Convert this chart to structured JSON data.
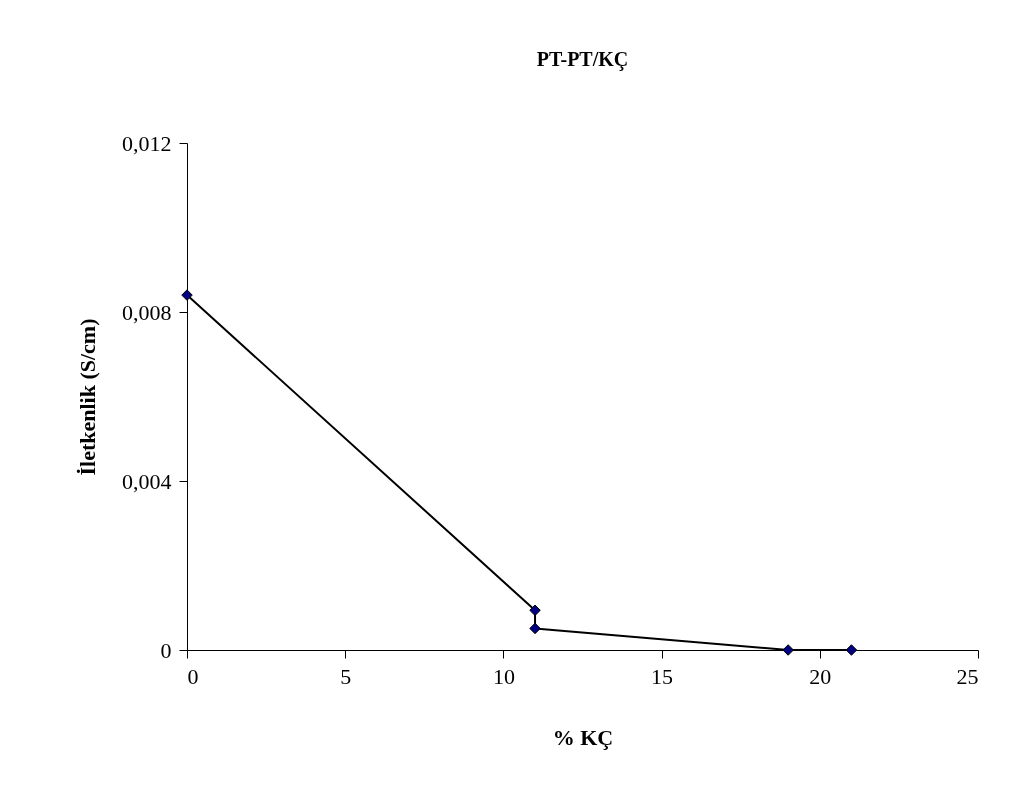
{
  "chart_data": {
    "type": "line",
    "title": "PT-PT/KÇ",
    "xlabel": "% KÇ",
    "ylabel": "İletkenlik (S/cm)",
    "x": [
      0,
      11,
      11,
      19,
      21
    ],
    "series": [
      {
        "color": "#000080",
        "values": [
          0.0084,
          0.00094,
          0.00051,
          0,
          0
        ]
      }
    ],
    "xlim": [
      0,
      25
    ],
    "xticks": [
      0,
      5,
      10,
      15,
      20,
      25
    ],
    "ylim": [
      0,
      0.012
    ],
    "yticks": [
      0,
      {
        "value": 0.004,
        "label": "0,004"
      },
      {
        "value": 0.008,
        "label": "0,008"
      },
      {
        "value": 0.012,
        "label": "0,012"
      }
    ],
    "grid": false,
    "marker": "diamond",
    "line_style": "solid"
  }
}
